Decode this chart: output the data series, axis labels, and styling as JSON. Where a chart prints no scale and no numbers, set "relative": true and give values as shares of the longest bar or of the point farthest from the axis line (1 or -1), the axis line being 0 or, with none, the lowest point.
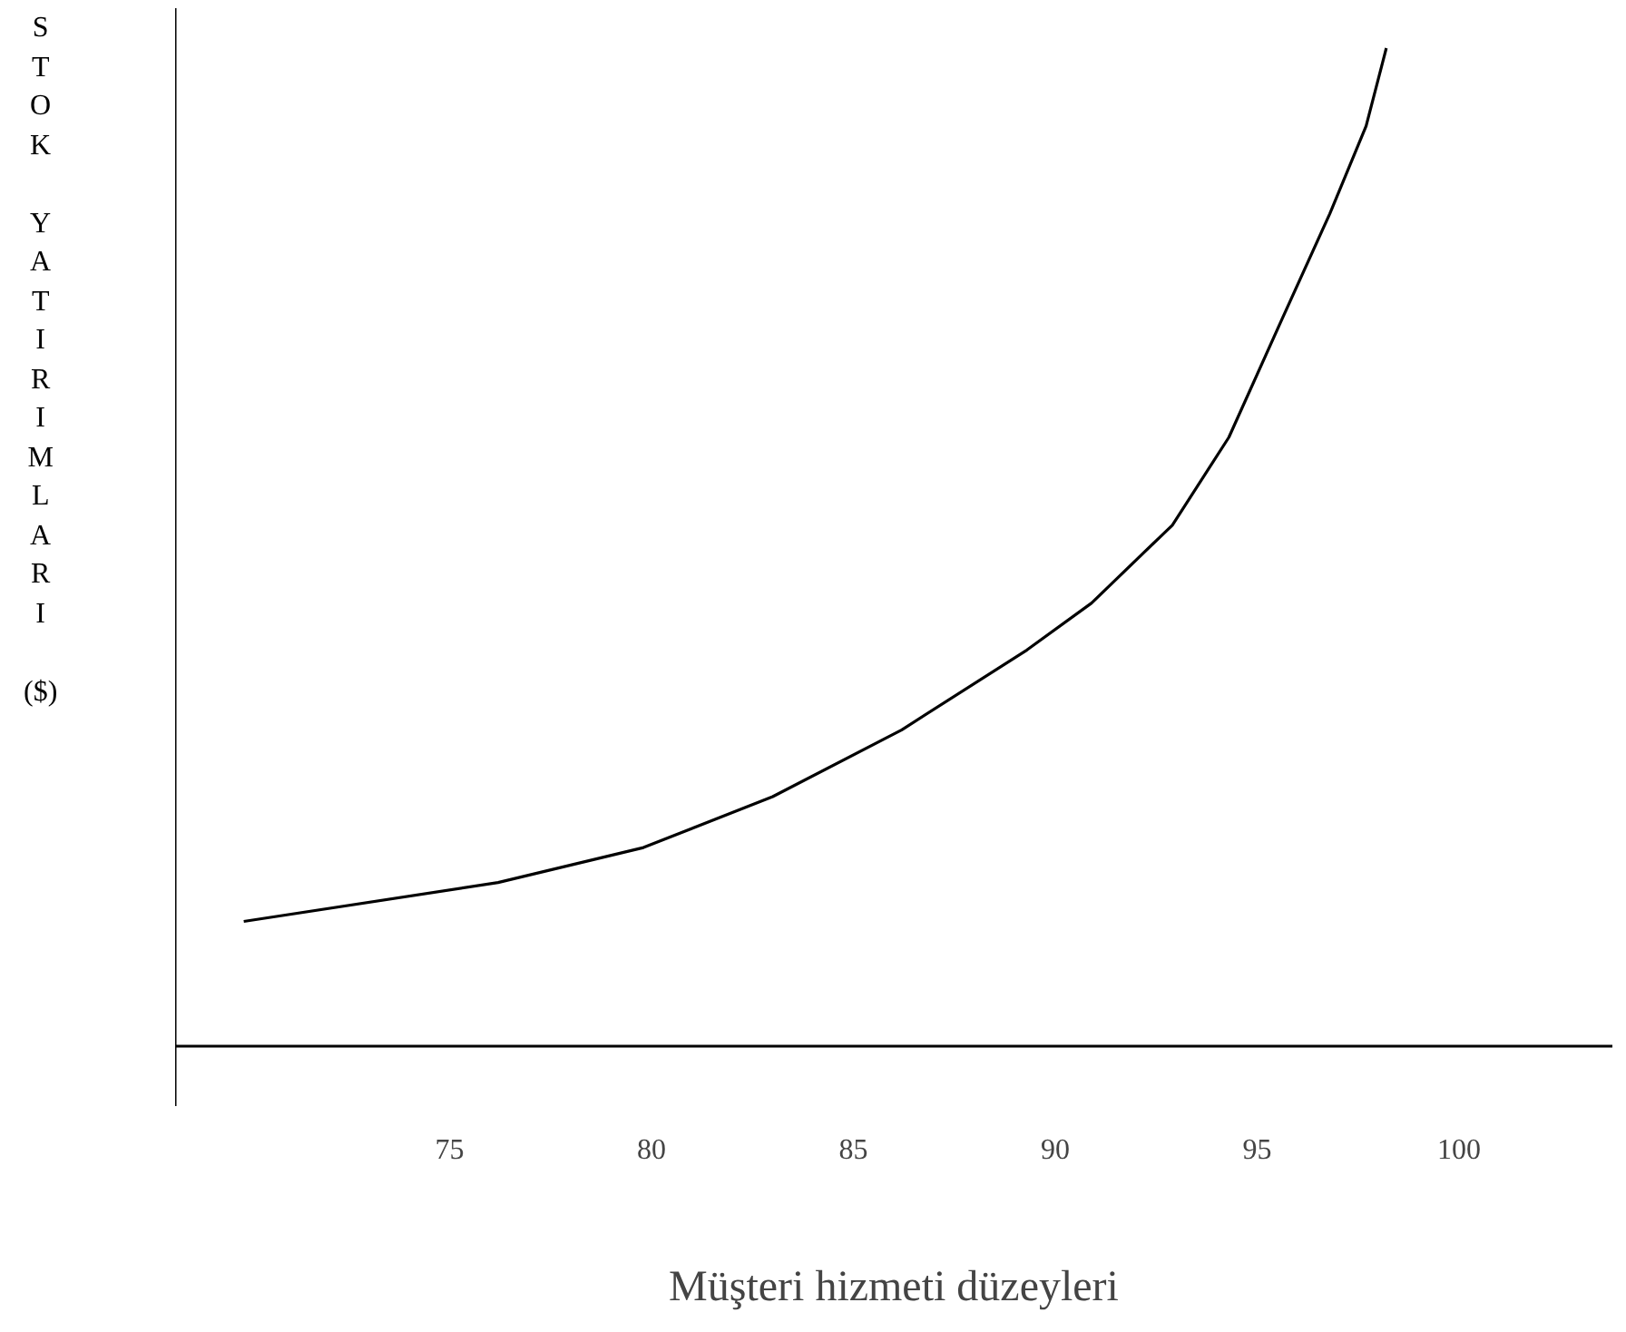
{
  "chart_data": {
    "type": "line",
    "relative": true,
    "xlabel": "Müşteri hizmeti düzeyleri",
    "ylabel": "STOK YATIRIMLARI ($)",
    "xlim": [
      68.2,
      103.8
    ],
    "xticks": [
      75,
      80,
      85,
      90,
      95,
      100
    ],
    "grid": false,
    "marker": "none",
    "line_style": "solid",
    "series": [
      {
        "color": "#000000",
        "x": [
          69.9,
          76.2,
          79.8,
          83.0,
          86.2,
          89.3,
          90.9,
          92.9,
          94.3,
          95.6,
          96.8,
          97.7,
          98.2
        ],
        "values": [
          0.125,
          0.164,
          0.199,
          0.25,
          0.317,
          0.397,
          0.444,
          0.522,
          0.61,
          0.727,
          0.834,
          0.922,
          1.0
        ]
      }
    ]
  }
}
